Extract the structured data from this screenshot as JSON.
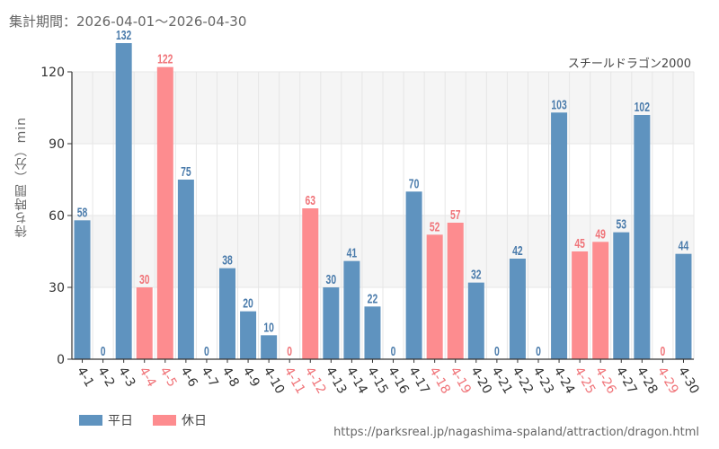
{
  "header": {
    "period_label": "集計期間：",
    "period_range": "2026-04-01～2026-04-30"
  },
  "colors": {
    "weekday": "#5f93bf",
    "holiday": "#fd8c8f",
    "weekday_text": "#4a7bab",
    "holiday_text": "#f07479",
    "band": "#f5f5f5",
    "grid": "#e6e6e6",
    "axis": "#333333"
  },
  "legend": {
    "weekday_label": "平日",
    "holiday_label": "休日"
  },
  "source_url": "https://parksreal.jp/nagashima-spaland/attraction/dragon.html",
  "chart_data": {
    "type": "bar",
    "title": "スチールドラゴン2000",
    "ylabel": "待ち時間（分）min",
    "xlabel": "",
    "ylim": [
      0,
      132
    ],
    "yticks": [
      0,
      30,
      60,
      90,
      120
    ],
    "grid": true,
    "legend_position": "bottom-left",
    "categories": [
      "4-1",
      "4-2",
      "4-3",
      "4-4",
      "4-5",
      "4-6",
      "4-7",
      "4-8",
      "4-9",
      "4-10",
      "4-11",
      "4-12",
      "4-13",
      "4-14",
      "4-15",
      "4-16",
      "4-17",
      "4-18",
      "4-19",
      "4-20",
      "4-21",
      "4-22",
      "4-23",
      "4-24",
      "4-25",
      "4-26",
      "4-27",
      "4-28",
      "4-29",
      "4-30"
    ],
    "values": [
      58,
      0,
      132,
      30,
      122,
      75,
      0,
      38,
      20,
      10,
      0,
      63,
      30,
      41,
      22,
      0,
      70,
      52,
      57,
      32,
      0,
      42,
      0,
      103,
      45,
      49,
      53,
      102,
      0,
      44
    ],
    "day_type": [
      "weekday",
      "weekday",
      "weekday",
      "holiday",
      "holiday",
      "weekday",
      "weekday",
      "weekday",
      "weekday",
      "weekday",
      "holiday",
      "holiday",
      "weekday",
      "weekday",
      "weekday",
      "weekday",
      "weekday",
      "holiday",
      "holiday",
      "weekday",
      "weekday",
      "weekday",
      "weekday",
      "weekday",
      "holiday",
      "holiday",
      "weekday",
      "weekday",
      "holiday",
      "weekday"
    ],
    "series": [
      {
        "name": "平日",
        "type": "weekday"
      },
      {
        "name": "休日",
        "type": "holiday"
      }
    ]
  }
}
